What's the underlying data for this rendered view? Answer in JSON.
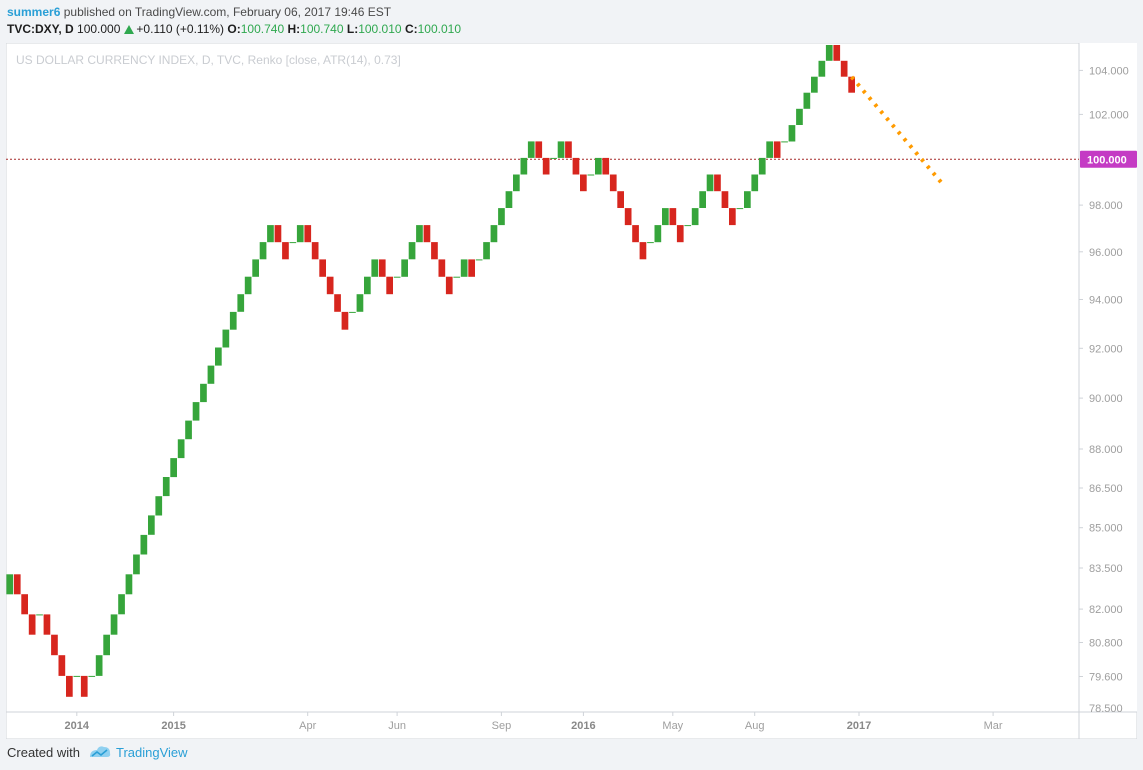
{
  "header": {
    "user": "summer6",
    "published_text": "published on TradingView.com, February 06, 2017 19:46 EST",
    "symbol": "TVC:DXY, D",
    "last": "100.000",
    "change": "+0.110 (+0.11%)",
    "open_label": "O:",
    "open": "100.740",
    "high_label": "H:",
    "high": "100.740",
    "low_label": "L:",
    "low": "100.010",
    "close_label": "C:",
    "close": "100.010"
  },
  "footer": {
    "created_with": "Created with",
    "brand": "TradingView"
  },
  "colors": {
    "up": "#36a53b",
    "down": "#d7261e",
    "price_line": "#a52a2a",
    "price_tag": "#c43bc4",
    "trend": "#ff9b00",
    "axis_text": "#9e9e9e"
  },
  "chart_data": {
    "type": "renko",
    "title": "US DOLLAR CURRENCY INDEX, D, TVC, Renko [close, ATR(14), 0.73]",
    "box_size": 0.73,
    "last_price": 100.0,
    "last_price_label": "100.000",
    "y_scale": "log",
    "ylim": [
      78.5,
      104.8
    ],
    "y_ticks": [
      {
        "v": 104.0,
        "label": "104.000"
      },
      {
        "v": 102.0,
        "label": "102.000"
      },
      {
        "v": 98.0,
        "label": "98.000"
      },
      {
        "v": 96.0,
        "label": "96.000"
      },
      {
        "v": 94.0,
        "label": "94.000"
      },
      {
        "v": 92.0,
        "label": "92.000"
      },
      {
        "v": 90.0,
        "label": "90.000"
      },
      {
        "v": 88.0,
        "label": "88.000"
      },
      {
        "v": 86.5,
        "label": "86.500"
      },
      {
        "v": 85.0,
        "label": "85.000"
      },
      {
        "v": 83.5,
        "label": "83.500"
      },
      {
        "v": 82.0,
        "label": "82.000"
      },
      {
        "v": 80.8,
        "label": "80.800"
      },
      {
        "v": 79.6,
        "label": "79.600"
      },
      {
        "v": 78.5,
        "label": "78.500"
      }
    ],
    "x_ticks": [
      {
        "i": 9.5,
        "label": "2014",
        "bold": true
      },
      {
        "i": 22.5,
        "label": "2015",
        "bold": true
      },
      {
        "i": 40.5,
        "label": "Apr",
        "bold": false
      },
      {
        "i": 52.5,
        "label": "Jun",
        "bold": false
      },
      {
        "i": 66.5,
        "label": "Sep",
        "bold": false
      },
      {
        "i": 77.5,
        "label": "2016",
        "bold": true
      },
      {
        "i": 89.5,
        "label": "May",
        "bold": false
      },
      {
        "i": 100.5,
        "label": "Aug",
        "bold": false
      },
      {
        "i": 114.5,
        "label": "2017",
        "bold": true
      },
      {
        "i": 132.5,
        "label": "Mar",
        "bold": false
      }
    ],
    "start_price": 82.54,
    "bricks": [
      1,
      -1,
      -1,
      -1,
      1,
      -1,
      -1,
      -1,
      -1,
      1,
      -1,
      1,
      1,
      1,
      1,
      1,
      1,
      1,
      1,
      1,
      1,
      1,
      1,
      1,
      1,
      1,
      1,
      1,
      1,
      1,
      1,
      1,
      1,
      1,
      1,
      1,
      -1,
      -1,
      1,
      1,
      -1,
      -1,
      -1,
      -1,
      -1,
      -1,
      1,
      1,
      1,
      1,
      -1,
      -1,
      1,
      1,
      1,
      1,
      -1,
      -1,
      -1,
      -1,
      1,
      1,
      -1,
      1,
      1,
      1,
      1,
      1,
      1,
      1,
      1,
      -1,
      -1,
      1,
      1,
      -1,
      -1,
      -1,
      1,
      1,
      -1,
      -1,
      -1,
      -1,
      -1,
      -1,
      1,
      1,
      1,
      -1,
      -1,
      1,
      1,
      1,
      1,
      -1,
      -1,
      -1,
      1,
      1,
      1,
      1,
      1,
      -1,
      1,
      1,
      1,
      1,
      1,
      1,
      1,
      -1,
      -1,
      -1
    ],
    "trend_line": {
      "start": {
        "i": 113.5,
        "v": 103.7
      },
      "end": {
        "i": 125.5,
        "v": 99.0
      }
    }
  }
}
